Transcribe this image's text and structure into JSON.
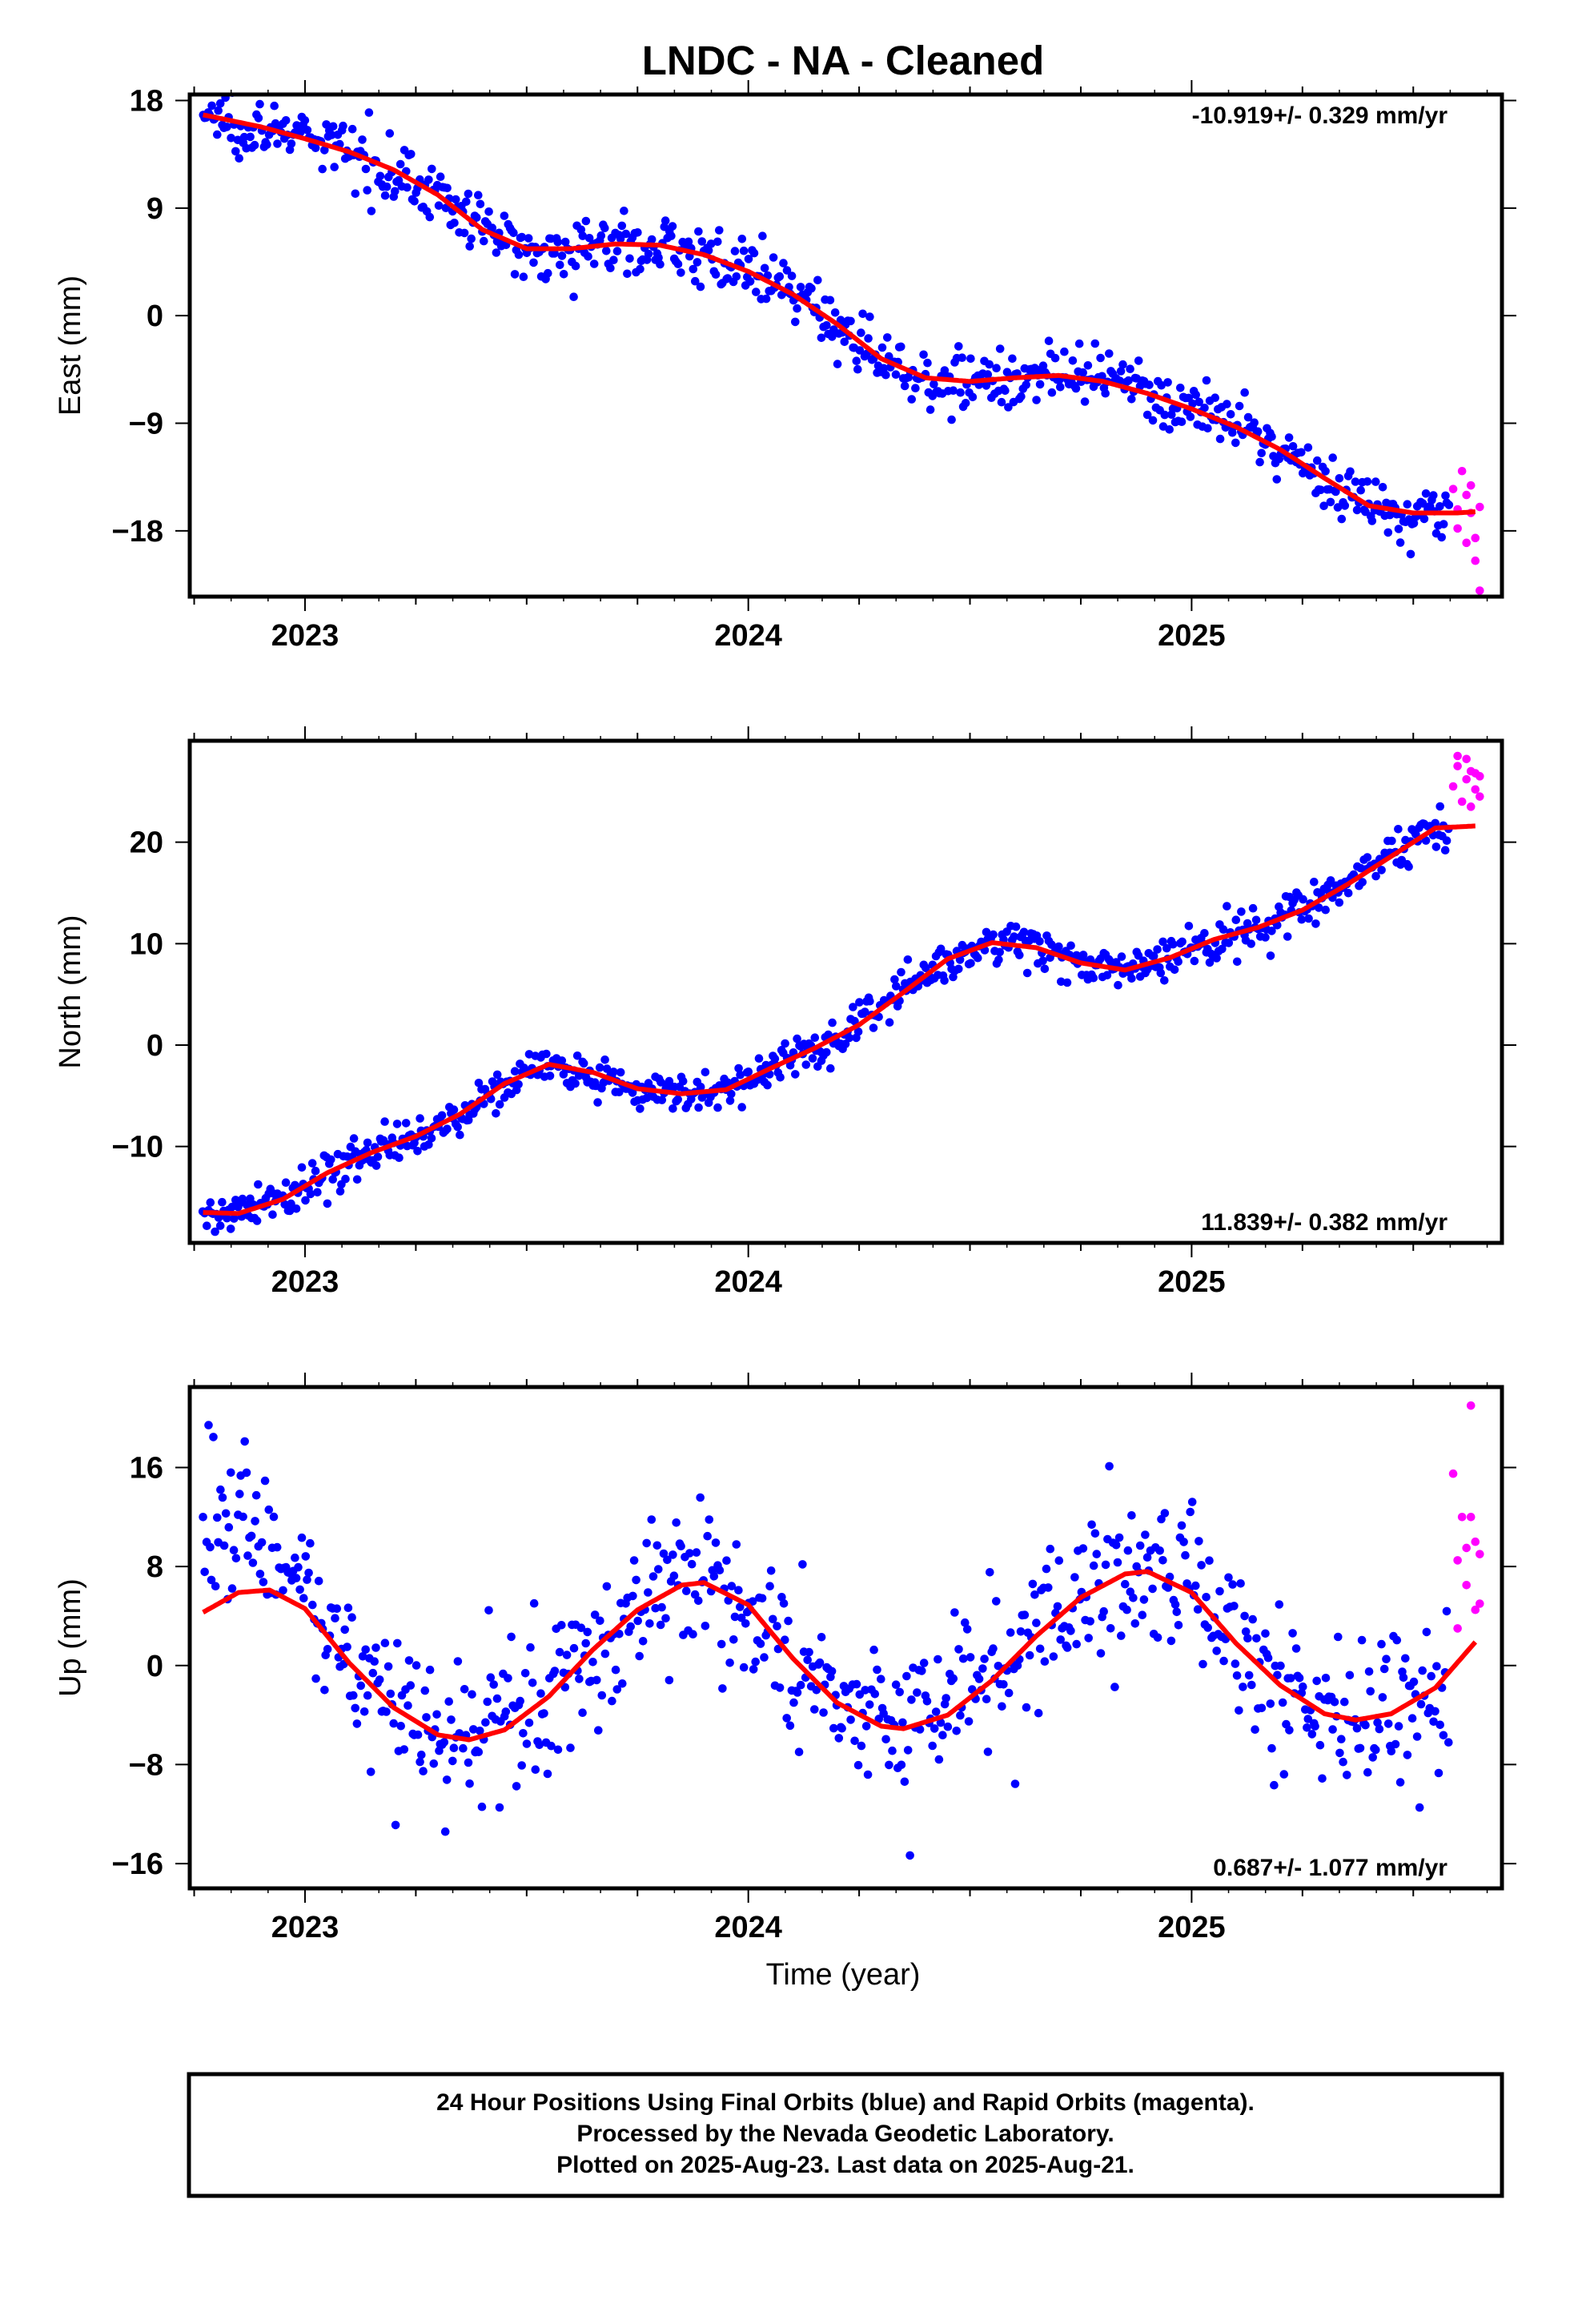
{
  "title": "LNDC  - NA - Cleaned",
  "xlabel": "Time (year)",
  "footer": {
    "line1": "24 Hour Positions Using Final Orbits (blue) and Rapid Orbits (magenta).",
    "line2": "Processed by the Nevada Geodetic Laboratory.",
    "line3": "Plotted on 2025-Aug-23. Last data on 2025-Aug-21."
  },
  "colors": {
    "final": "#0000ff",
    "rapid": "#ff00ff",
    "model": "#ff0000"
  },
  "chart_data": [
    {
      "type": "scatter",
      "panel": "east",
      "ylabel": "East (mm)",
      "xlim": [
        2022.74,
        2025.7
      ],
      "ylim": [
        -23.5,
        18.5
      ],
      "yticks": [
        18,
        9,
        0,
        -9,
        -18
      ],
      "yticklabels": [
        "18",
        "9",
        "0",
        "−9",
        "−18"
      ],
      "xticks": [
        2023,
        2024,
        2025
      ],
      "xticklabels": [
        "2023",
        "2024",
        "2025"
      ],
      "rate_label": "-10.919+/- 0.329 mm/yr",
      "rate_position": "top-right",
      "model": {
        "x": [
          2022.77,
          2022.9,
          2023.0,
          2023.1,
          2023.2,
          2023.3,
          2023.4,
          2023.5,
          2023.6,
          2023.7,
          2023.8,
          2023.9,
          2024.0,
          2024.1,
          2024.2,
          2024.3,
          2024.4,
          2024.5,
          2024.6,
          2024.7,
          2024.8,
          2024.9,
          2025.0,
          2025.1,
          2025.2,
          2025.3,
          2025.4,
          2025.5,
          2025.6,
          2025.64
        ],
        "y": [
          16.8,
          15.8,
          14.8,
          13.7,
          12.2,
          10.1,
          7.2,
          5.6,
          5.6,
          6.0,
          5.9,
          5.1,
          3.7,
          1.8,
          -0.7,
          -3.6,
          -5.2,
          -5.5,
          -5.2,
          -5.0,
          -5.5,
          -6.5,
          -7.8,
          -9.3,
          -11.2,
          -13.6,
          -15.9,
          -16.5,
          -16.5,
          -16.4
        ]
      },
      "final": {
        "x_range": [
          2022.77,
          2025.58
        ],
        "n": 720,
        "noise": 1.2
      },
      "rapid": {
        "x": [
          2025.59,
          2025.6,
          2025.6,
          2025.61,
          2025.62,
          2025.62,
          2025.63,
          2025.63,
          2025.64,
          2025.64,
          2025.65,
          2025.65
        ],
        "y": [
          -14.5,
          -16.2,
          -17.8,
          -13.0,
          -15.0,
          -19.0,
          -16.5,
          -14.2,
          -20.5,
          -18.6,
          -16.0,
          -23.0
        ]
      }
    },
    {
      "type": "scatter",
      "panel": "north",
      "ylabel": "North (mm)",
      "xlim": [
        2022.74,
        2025.7
      ],
      "ylim": [
        -19.5,
        30.0
      ],
      "yticks": [
        20,
        10,
        0,
        -10
      ],
      "yticklabels": [
        "20",
        "10",
        "0",
        "−10"
      ],
      "xticks": [
        2023,
        2024,
        2025
      ],
      "xticklabels": [
        "2023",
        "2024",
        "2025"
      ],
      "rate_label": "11.839+/- 0.382 mm/yr",
      "rate_position": "bottom-right",
      "model": {
        "x": [
          2022.77,
          2022.85,
          2022.95,
          2023.05,
          2023.15,
          2023.25,
          2023.35,
          2023.45,
          2023.55,
          2023.65,
          2023.75,
          2023.85,
          2023.95,
          2024.05,
          2024.15,
          2024.25,
          2024.35,
          2024.45,
          2024.55,
          2024.65,
          2024.75,
          2024.85,
          2024.95,
          2025.05,
          2025.15,
          2025.25,
          2025.35,
          2025.45,
          2025.55,
          2025.64
        ],
        "y": [
          -16.5,
          -16.6,
          -15.2,
          -12.6,
          -10.6,
          -9.0,
          -6.8,
          -3.8,
          -1.9,
          -2.7,
          -4.3,
          -4.8,
          -4.4,
          -2.3,
          -0.3,
          2.0,
          5.2,
          8.5,
          10.1,
          9.6,
          8.1,
          7.4,
          8.6,
          10.4,
          11.6,
          13.3,
          15.8,
          18.6,
          21.4,
          21.6
        ]
      },
      "final": {
        "x_range": [
          2022.77,
          2025.58
        ],
        "n": 720,
        "noise": 1.0
      },
      "rapid": {
        "x": [
          2025.59,
          2025.6,
          2025.6,
          2025.61,
          2025.62,
          2025.62,
          2025.63,
          2025.63,
          2025.64,
          2025.64,
          2025.65,
          2025.65
        ],
        "y": [
          25.5,
          27.5,
          28.5,
          24.0,
          26.2,
          28.2,
          27.0,
          23.5,
          26.8,
          25.2,
          24.5,
          26.5
        ]
      }
    },
    {
      "type": "scatter",
      "panel": "up",
      "ylabel": "Up (mm)",
      "xlim": [
        2022.74,
        2025.7
      ],
      "ylim": [
        -18.0,
        22.5
      ],
      "yticks": [
        16,
        8,
        0,
        -8,
        -16
      ],
      "yticklabels": [
        "16",
        "8",
        "0",
        "−8",
        "−16"
      ],
      "xticks": [
        2023,
        2024,
        2025
      ],
      "xticklabels": [
        "2023",
        "2024",
        "2025"
      ],
      "rate_label": "0.687+/- 1.077 mm/yr",
      "rate_position": "bottom-right",
      "model": {
        "x": [
          2022.77,
          2022.85,
          2022.92,
          2023.0,
          2023.1,
          2023.2,
          2023.3,
          2023.37,
          2023.45,
          2023.55,
          2023.65,
          2023.75,
          2023.85,
          2023.9,
          2024.0,
          2024.1,
          2024.2,
          2024.3,
          2024.35,
          2024.45,
          2024.55,
          2024.65,
          2024.75,
          2024.85,
          2024.9,
          2025.0,
          2025.1,
          2025.2,
          2025.3,
          2025.37,
          2025.45,
          2025.55,
          2025.64
        ],
        "y": [
          4.3,
          5.9,
          6.1,
          4.6,
          0.2,
          -3.4,
          -5.6,
          -6.0,
          -5.2,
          -2.5,
          1.3,
          4.5,
          6.5,
          6.7,
          4.9,
          0.6,
          -3.0,
          -4.9,
          -5.1,
          -4.0,
          -1.2,
          2.4,
          5.5,
          7.4,
          7.6,
          5.9,
          1.8,
          -1.6,
          -3.9,
          -4.4,
          -3.9,
          -1.8,
          1.9
        ]
      },
      "final": {
        "x_range": [
          2022.77,
          2025.58
        ],
        "n": 720,
        "noise": 3.0
      },
      "rapid": {
        "x": [
          2025.59,
          2025.6,
          2025.6,
          2025.61,
          2025.62,
          2025.62,
          2025.63,
          2025.63,
          2025.64,
          2025.64,
          2025.65,
          2025.65
        ],
        "y": [
          15.5,
          8.5,
          3.0,
          12.0,
          6.5,
          9.5,
          21.0,
          12.0,
          4.5,
          10.0,
          5.0,
          9.0
        ]
      }
    }
  ]
}
